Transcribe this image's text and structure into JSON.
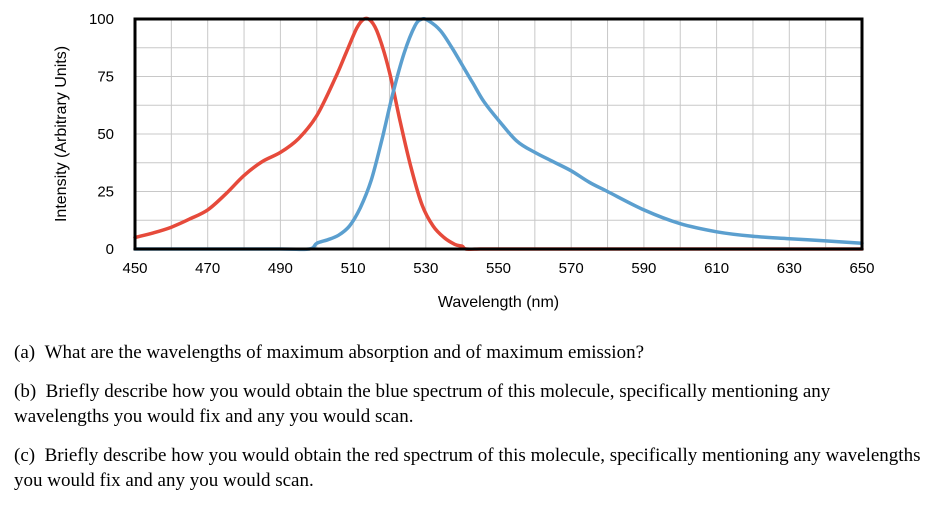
{
  "chart_data": {
    "type": "line",
    "title": "",
    "xlabel": "Wavelength (nm)",
    "ylabel": "Intensity (Arbitrary Units)",
    "xlim": [
      450,
      650
    ],
    "ylim": [
      0,
      100
    ],
    "x_ticks": [
      450,
      470,
      490,
      510,
      530,
      550,
      570,
      590,
      610,
      630,
      650
    ],
    "y_ticks": [
      0,
      25,
      50,
      75,
      100
    ],
    "grid": true,
    "legend": "none",
    "series": [
      {
        "color": "#e64a3b",
        "x": [
          450,
          455,
          460,
          465,
          470,
          475,
          480,
          485,
          490,
          495,
          500,
          505,
          508,
          511,
          513,
          515,
          517,
          520,
          523,
          526,
          529,
          532,
          535,
          538,
          540,
          541,
          545,
          550,
          560,
          580,
          600,
          620,
          640,
          650
        ],
        "y": [
          5,
          7,
          9.5,
          13,
          17,
          24,
          32,
          38,
          42,
          48,
          58,
          74,
          85,
          96,
          100,
          99,
          93,
          77,
          55,
          35,
          19,
          10,
          5,
          2,
          1.2,
          0,
          0,
          0,
          0,
          0,
          0,
          0,
          0,
          0
        ]
      },
      {
        "color": "#5b9fcf",
        "x": [
          450,
          470,
          490,
          498,
          500,
          503,
          506,
          509,
          512,
          515,
          518,
          521,
          524,
          527,
          529,
          531,
          534,
          537,
          540,
          543,
          546,
          550,
          555,
          560,
          565,
          570,
          575,
          580,
          590,
          600,
          610,
          620,
          630,
          640,
          650
        ],
        "y": [
          0,
          0,
          0,
          0,
          2.5,
          4,
          6,
          10,
          18,
          30,
          48,
          68,
          85,
          97,
          100,
          99,
          95,
          88,
          80,
          72,
          64,
          56,
          47,
          42,
          38,
          34,
          29,
          25,
          17,
          11,
          7.5,
          5.5,
          4.5,
          3.5,
          2.5
        ]
      }
    ]
  },
  "questions": [
    "(a)  What are the wavelengths of maximum absorption and of maximum emission?",
    "(b)  Briefly describe how you would obtain the blue spectrum of this molecule, specifically mentioning any wavelengths you would fix and any you would scan.",
    "(c)  Briefly describe how you would obtain the red spectrum of this molecule, specifically mentioning any wavelengths you would fix and any you would scan."
  ]
}
